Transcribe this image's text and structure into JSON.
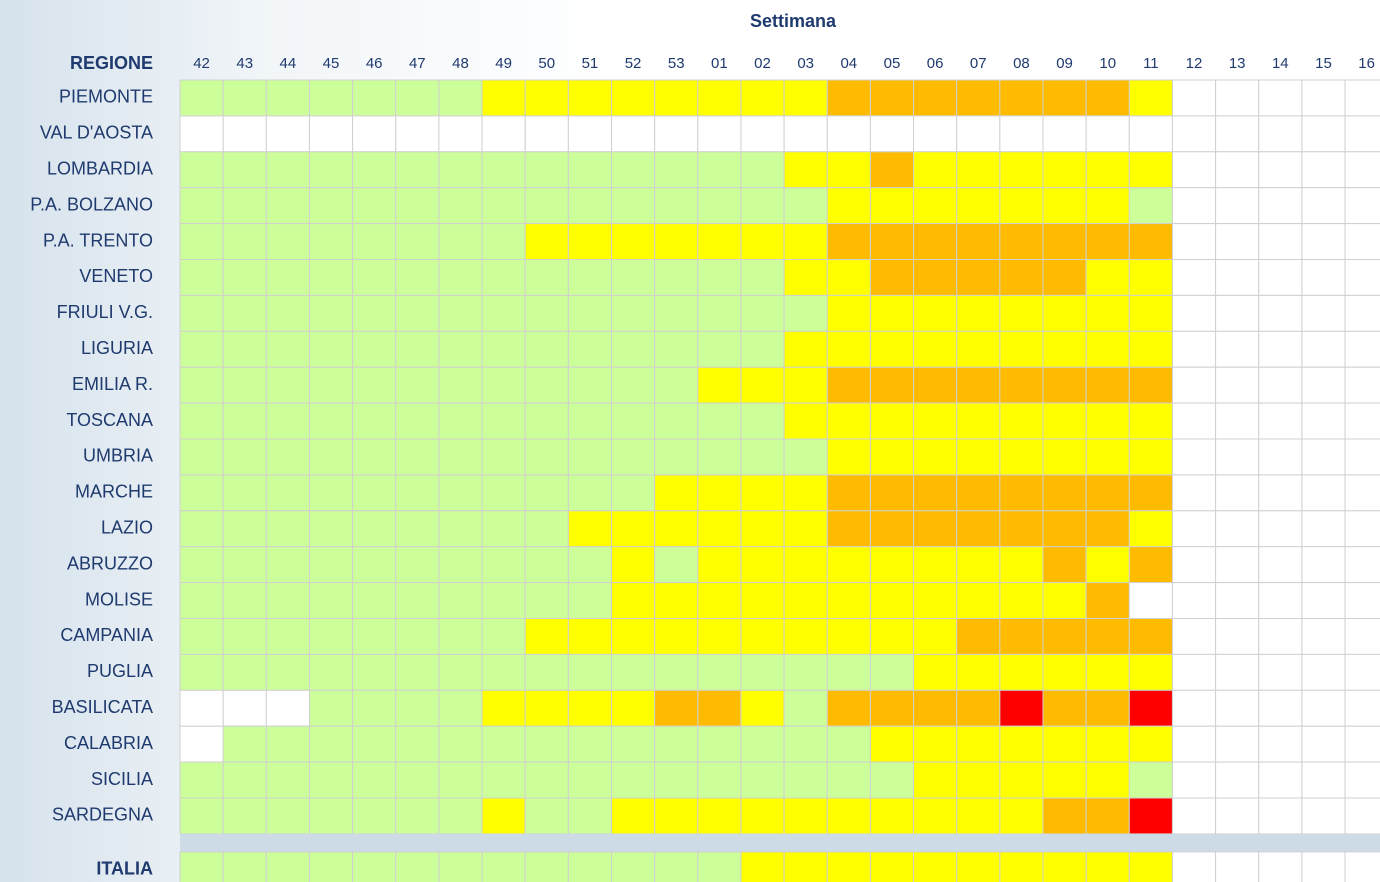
{
  "chart_data": {
    "type": "heatmap",
    "title": "Settimana",
    "row_header": "REGIONE",
    "columns": [
      "42",
      "43",
      "44",
      "45",
      "46",
      "47",
      "48",
      "49",
      "50",
      "51",
      "52",
      "53",
      "01",
      "02",
      "03",
      "04",
      "05",
      "06",
      "07",
      "08",
      "09",
      "10",
      "11",
      "12",
      "13",
      "14",
      "15",
      "16"
    ],
    "rows": [
      {
        "name": "PIEMONTE",
        "cells": [
          "#cf9",
          "#cf9",
          "#cf9",
          "#cf9",
          "#cf9",
          "#cf9",
          "#cf9",
          "#ff0",
          "#ff0",
          "#ff0",
          "#ff0",
          "#ff0",
          "#ff0",
          "#ff0",
          "#ff0",
          "#fb0",
          "#fb0",
          "#fb0",
          "#fb0",
          "#fb0",
          "#fb0",
          "#fb0",
          "#ff0",
          "#fff",
          "#fff",
          "#fff",
          "#fff",
          "#fff"
        ]
      },
      {
        "name": "VAL D'AOSTA",
        "cells": [
          "#fff",
          "#fff",
          "#fff",
          "#fff",
          "#fff",
          "#fff",
          "#fff",
          "#fff",
          "#fff",
          "#fff",
          "#fff",
          "#fff",
          "#fff",
          "#fff",
          "#fff",
          "#fff",
          "#fff",
          "#fff",
          "#fff",
          "#fff",
          "#fff",
          "#fff",
          "#fff",
          "#fff",
          "#fff",
          "#fff",
          "#fff",
          "#fff"
        ]
      },
      {
        "name": "LOMBARDIA",
        "cells": [
          "#cf9",
          "#cf9",
          "#cf9",
          "#cf9",
          "#cf9",
          "#cf9",
          "#cf9",
          "#cf9",
          "#cf9",
          "#cf9",
          "#cf9",
          "#cf9",
          "#cf9",
          "#cf9",
          "#ff0",
          "#ff0",
          "#fb0",
          "#ff0",
          "#ff0",
          "#ff0",
          "#ff0",
          "#ff0",
          "#ff0",
          "#fff",
          "#fff",
          "#fff",
          "#fff",
          "#fff"
        ]
      },
      {
        "name": "P.A. BOLZANO",
        "cells": [
          "#cf9",
          "#cf9",
          "#cf9",
          "#cf9",
          "#cf9",
          "#cf9",
          "#cf9",
          "#cf9",
          "#cf9",
          "#cf9",
          "#cf9",
          "#cf9",
          "#cf9",
          "#cf9",
          "#cf9",
          "#ff0",
          "#ff0",
          "#ff0",
          "#ff0",
          "#ff0",
          "#ff0",
          "#ff0",
          "#cf9",
          "#fff",
          "#fff",
          "#fff",
          "#fff",
          "#fff"
        ]
      },
      {
        "name": "P.A. TRENTO",
        "cells": [
          "#cf9",
          "#cf9",
          "#cf9",
          "#cf9",
          "#cf9",
          "#cf9",
          "#cf9",
          "#cf9",
          "#ff0",
          "#ff0",
          "#ff0",
          "#ff0",
          "#ff0",
          "#ff0",
          "#ff0",
          "#fb0",
          "#fb0",
          "#fb0",
          "#fb0",
          "#fb0",
          "#fb0",
          "#fb0",
          "#fb0",
          "#fff",
          "#fff",
          "#fff",
          "#fff",
          "#fff"
        ]
      },
      {
        "name": "VENETO",
        "cells": [
          "#cf9",
          "#cf9",
          "#cf9",
          "#cf9",
          "#cf9",
          "#cf9",
          "#cf9",
          "#cf9",
          "#cf9",
          "#cf9",
          "#cf9",
          "#cf9",
          "#cf9",
          "#cf9",
          "#ff0",
          "#ff0",
          "#fb0",
          "#fb0",
          "#fb0",
          "#fb0",
          "#fb0",
          "#ff0",
          "#ff0",
          "#fff",
          "#fff",
          "#fff",
          "#fff",
          "#fff"
        ]
      },
      {
        "name": "FRIULI V.G.",
        "cells": [
          "#cf9",
          "#cf9",
          "#cf9",
          "#cf9",
          "#cf9",
          "#cf9",
          "#cf9",
          "#cf9",
          "#cf9",
          "#cf9",
          "#cf9",
          "#cf9",
          "#cf9",
          "#cf9",
          "#cf9",
          "#ff0",
          "#ff0",
          "#ff0",
          "#ff0",
          "#ff0",
          "#ff0",
          "#ff0",
          "#ff0",
          "#fff",
          "#fff",
          "#fff",
          "#fff",
          "#fff"
        ]
      },
      {
        "name": "LIGURIA",
        "cells": [
          "#cf9",
          "#cf9",
          "#cf9",
          "#cf9",
          "#cf9",
          "#cf9",
          "#cf9",
          "#cf9",
          "#cf9",
          "#cf9",
          "#cf9",
          "#cf9",
          "#cf9",
          "#cf9",
          "#ff0",
          "#ff0",
          "#ff0",
          "#ff0",
          "#ff0",
          "#ff0",
          "#ff0",
          "#ff0",
          "#ff0",
          "#fff",
          "#fff",
          "#fff",
          "#fff",
          "#fff"
        ]
      },
      {
        "name": "EMILIA R.",
        "cells": [
          "#cf9",
          "#cf9",
          "#cf9",
          "#cf9",
          "#cf9",
          "#cf9",
          "#cf9",
          "#cf9",
          "#cf9",
          "#cf9",
          "#cf9",
          "#cf9",
          "#ff0",
          "#ff0",
          "#ff0",
          "#fb0",
          "#fb0",
          "#fb0",
          "#fb0",
          "#fb0",
          "#fb0",
          "#fb0",
          "#fb0",
          "#fff",
          "#fff",
          "#fff",
          "#fff",
          "#fff"
        ]
      },
      {
        "name": "TOSCANA",
        "cells": [
          "#cf9",
          "#cf9",
          "#cf9",
          "#cf9",
          "#cf9",
          "#cf9",
          "#cf9",
          "#cf9",
          "#cf9",
          "#cf9",
          "#cf9",
          "#cf9",
          "#cf9",
          "#cf9",
          "#ff0",
          "#ff0",
          "#ff0",
          "#ff0",
          "#ff0",
          "#ff0",
          "#ff0",
          "#ff0",
          "#ff0",
          "#fff",
          "#fff",
          "#fff",
          "#fff",
          "#fff"
        ]
      },
      {
        "name": "UMBRIA",
        "cells": [
          "#cf9",
          "#cf9",
          "#cf9",
          "#cf9",
          "#cf9",
          "#cf9",
          "#cf9",
          "#cf9",
          "#cf9",
          "#cf9",
          "#cf9",
          "#cf9",
          "#cf9",
          "#cf9",
          "#cf9",
          "#ff0",
          "#ff0",
          "#ff0",
          "#ff0",
          "#ff0",
          "#ff0",
          "#ff0",
          "#ff0",
          "#fff",
          "#fff",
          "#fff",
          "#fff",
          "#fff"
        ]
      },
      {
        "name": "MARCHE",
        "cells": [
          "#cf9",
          "#cf9",
          "#cf9",
          "#cf9",
          "#cf9",
          "#cf9",
          "#cf9",
          "#cf9",
          "#cf9",
          "#cf9",
          "#cf9",
          "#ff0",
          "#ff0",
          "#ff0",
          "#ff0",
          "#fb0",
          "#fb0",
          "#fb0",
          "#fb0",
          "#fb0",
          "#fb0",
          "#fb0",
          "#fb0",
          "#fff",
          "#fff",
          "#fff",
          "#fff",
          "#fff"
        ]
      },
      {
        "name": "LAZIO",
        "cells": [
          "#cf9",
          "#cf9",
          "#cf9",
          "#cf9",
          "#cf9",
          "#cf9",
          "#cf9",
          "#cf9",
          "#cf9",
          "#ff0",
          "#ff0",
          "#ff0",
          "#ff0",
          "#ff0",
          "#ff0",
          "#fb0",
          "#fb0",
          "#fb0",
          "#fb0",
          "#fb0",
          "#fb0",
          "#fb0",
          "#ff0",
          "#fff",
          "#fff",
          "#fff",
          "#fff",
          "#fff"
        ]
      },
      {
        "name": "ABRUZZO",
        "cells": [
          "#cf9",
          "#cf9",
          "#cf9",
          "#cf9",
          "#cf9",
          "#cf9",
          "#cf9",
          "#cf9",
          "#cf9",
          "#cf9",
          "#ff0",
          "#cf9",
          "#ff0",
          "#ff0",
          "#ff0",
          "#ff0",
          "#ff0",
          "#ff0",
          "#ff0",
          "#ff0",
          "#fb0",
          "#ff0",
          "#fb0",
          "#fff",
          "#fff",
          "#fff",
          "#fff",
          "#fff"
        ]
      },
      {
        "name": "MOLISE",
        "cells": [
          "#cf9",
          "#cf9",
          "#cf9",
          "#cf9",
          "#cf9",
          "#cf9",
          "#cf9",
          "#cf9",
          "#cf9",
          "#cf9",
          "#ff0",
          "#ff0",
          "#ff0",
          "#ff0",
          "#ff0",
          "#ff0",
          "#ff0",
          "#ff0",
          "#ff0",
          "#ff0",
          "#ff0",
          "#fb0",
          "#fff",
          "#fff",
          "#fff",
          "#fff",
          "#fff",
          "#fff"
        ]
      },
      {
        "name": "CAMPANIA",
        "cells": [
          "#cf9",
          "#cf9",
          "#cf9",
          "#cf9",
          "#cf9",
          "#cf9",
          "#cf9",
          "#cf9",
          "#ff0",
          "#ff0",
          "#ff0",
          "#ff0",
          "#ff0",
          "#ff0",
          "#ff0",
          "#ff0",
          "#ff0",
          "#ff0",
          "#fb0",
          "#fb0",
          "#fb0",
          "#fb0",
          "#fb0",
          "#fff",
          "#fff",
          "#fff",
          "#fff",
          "#fff"
        ]
      },
      {
        "name": "PUGLIA",
        "cells": [
          "#cf9",
          "#cf9",
          "#cf9",
          "#cf9",
          "#cf9",
          "#cf9",
          "#cf9",
          "#cf9",
          "#cf9",
          "#cf9",
          "#cf9",
          "#cf9",
          "#cf9",
          "#cf9",
          "#cf9",
          "#cf9",
          "#cf9",
          "#ff0",
          "#ff0",
          "#ff0",
          "#ff0",
          "#ff0",
          "#ff0",
          "#fff",
          "#fff",
          "#fff",
          "#fff",
          "#fff"
        ]
      },
      {
        "name": "BASILICATA",
        "cells": [
          "#fff",
          "#fff",
          "#fff",
          "#cf9",
          "#cf9",
          "#cf9",
          "#cf9",
          "#ff0",
          "#ff0",
          "#ff0",
          "#ff0",
          "#fb0",
          "#fb0",
          "#ff0",
          "#cf9",
          "#fb0",
          "#fb0",
          "#fb0",
          "#fb0",
          "#f00",
          "#fb0",
          "#fb0",
          "#f00",
          "#fff",
          "#fff",
          "#fff",
          "#fff",
          "#fff"
        ]
      },
      {
        "name": "CALABRIA",
        "cells": [
          "#fff",
          "#cf9",
          "#cf9",
          "#cf9",
          "#cf9",
          "#cf9",
          "#cf9",
          "#cf9",
          "#cf9",
          "#cf9",
          "#cf9",
          "#cf9",
          "#cf9",
          "#cf9",
          "#cf9",
          "#cf9",
          "#ff0",
          "#ff0",
          "#ff0",
          "#ff0",
          "#ff0",
          "#ff0",
          "#ff0",
          "#fff",
          "#fff",
          "#fff",
          "#fff",
          "#fff"
        ]
      },
      {
        "name": "SICILIA",
        "cells": [
          "#cf9",
          "#cf9",
          "#cf9",
          "#cf9",
          "#cf9",
          "#cf9",
          "#cf9",
          "#cf9",
          "#cf9",
          "#cf9",
          "#cf9",
          "#cf9",
          "#cf9",
          "#cf9",
          "#cf9",
          "#cf9",
          "#cf9",
          "#ff0",
          "#ff0",
          "#ff0",
          "#ff0",
          "#ff0",
          "#cf9",
          "#fff",
          "#fff",
          "#fff",
          "#fff",
          "#fff"
        ]
      },
      {
        "name": "SARDEGNA",
        "cells": [
          "#cf9",
          "#cf9",
          "#cf9",
          "#cf9",
          "#cf9",
          "#cf9",
          "#cf9",
          "#ff0",
          "#cf9",
          "#cf9",
          "#ff0",
          "#ff0",
          "#ff0",
          "#ff0",
          "#ff0",
          "#ff0",
          "#ff0",
          "#ff0",
          "#ff0",
          "#ff0",
          "#fb0",
          "#fb0",
          "#f00",
          "#fff",
          "#fff",
          "#fff",
          "#fff",
          "#fff"
        ]
      }
    ],
    "total": {
      "name": "ITALIA",
      "cells": [
        "#cf9",
        "#cf9",
        "#cf9",
        "#cf9",
        "#cf9",
        "#cf9",
        "#cf9",
        "#cf9",
        "#cf9",
        "#cf9",
        "#cf9",
        "#cf9",
        "#cf9",
        "#ff0",
        "#ff0",
        "#ff0",
        "#ff0",
        "#ff0",
        "#ff0",
        "#ff0",
        "#ff0",
        "#ff0",
        "#ff0",
        "#fff",
        "#fff",
        "#fff",
        "#fff",
        "#fff"
      ]
    }
  }
}
